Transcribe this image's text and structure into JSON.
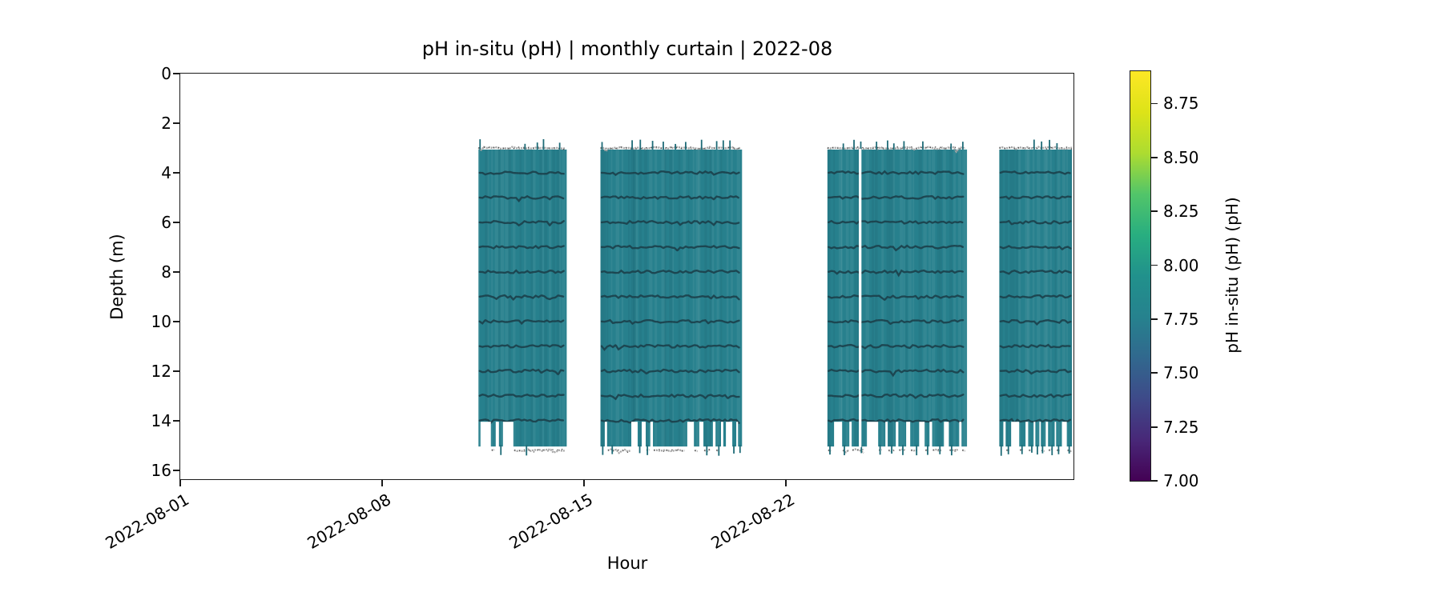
{
  "chart_data": {
    "type": "heatmap",
    "variant": "time-depth curtain plot",
    "title": "pH in-situ (pH) | monthly curtain | 2022-08",
    "xlabel": "Hour",
    "ylabel": "Depth (m)",
    "x_ticks": [
      {
        "label": "2022-08-01",
        "day": 1
      },
      {
        "label": "2022-08-08",
        "day": 8
      },
      {
        "label": "2022-08-15",
        "day": 15
      },
      {
        "label": "2022-08-22",
        "day": 22
      }
    ],
    "x_range_days": [
      1,
      32
    ],
    "y_ticks": [
      0,
      2,
      4,
      6,
      8,
      10,
      12,
      14,
      16
    ],
    "y_range_m": [
      0,
      16.4
    ],
    "grid": false,
    "value_ph_approx": 8.0,
    "depth_coverage_m": [
      3.0,
      15.0
    ],
    "profile_line_depths_m": [
      4,
      5,
      6,
      7,
      8,
      9,
      10,
      11,
      12,
      13,
      14
    ],
    "boundary_line_depths_m": [
      3.0,
      15.2
    ],
    "coverage_blocks_days": [
      {
        "start": 11.34,
        "end": 14.4,
        "interruption_days": [],
        "bottom_gaps_days": [
          [
            11.41,
            11.77
          ],
          [
            11.94,
            12.05
          ],
          [
            12.19,
            12.55
          ]
        ]
      },
      {
        "start": 15.57,
        "end": 20.48,
        "interruption_days": [],
        "bottom_gaps_days": [
          [
            15.72,
            15.8
          ],
          [
            16.64,
            16.86
          ],
          [
            17.0,
            17.14
          ],
          [
            17.3,
            17.39
          ],
          [
            18.58,
            18.81
          ],
          [
            19.0,
            19.14
          ],
          [
            19.47,
            19.56
          ],
          [
            19.75,
            19.83
          ],
          [
            19.92,
            20.14
          ],
          [
            20.28,
            20.34
          ]
        ]
      },
      {
        "start": 23.44,
        "end": 28.28,
        "interruption_days": [
          [
            24.53,
            24.62
          ]
        ],
        "bottom_gaps_days": [
          [
            23.67,
            23.95
          ],
          [
            24.2,
            24.28
          ],
          [
            24.81,
            25.2
          ],
          [
            25.45,
            25.53
          ],
          [
            25.81,
            25.9
          ],
          [
            26.17,
            26.31
          ],
          [
            26.62,
            26.81
          ],
          [
            26.98,
            27.07
          ],
          [
            27.48,
            27.65
          ],
          [
            28.01,
            28.09
          ]
        ]
      },
      {
        "start": 29.4,
        "end": 32.0,
        "interruption_days": [],
        "bottom_gaps_days": [
          [
            29.54,
            29.62
          ],
          [
            29.81,
            30.09
          ],
          [
            30.31,
            30.4
          ],
          [
            30.59,
            30.65
          ],
          [
            30.79,
            30.84
          ],
          [
            31.01,
            31.09
          ],
          [
            31.32,
            31.37
          ],
          [
            31.57,
            31.74
          ]
        ]
      }
    ],
    "colorbar": {
      "label": "pH in-situ (pH) (pH)",
      "colormap": "viridis",
      "vmin": 7.0,
      "vmax": 8.9,
      "ticks": [
        {
          "label": "7.00",
          "value": 7.0
        },
        {
          "label": "7.25",
          "value": 7.25
        },
        {
          "label": "7.50",
          "value": 7.5
        },
        {
          "label": "7.75",
          "value": 7.75
        },
        {
          "label": "8.00",
          "value": 8.0
        },
        {
          "label": "8.25",
          "value": 8.25
        },
        {
          "label": "8.50",
          "value": 8.5
        },
        {
          "label": "8.75",
          "value": 8.75
        }
      ]
    },
    "colors": {
      "fill": "#27808d",
      "fill_stripe_dark": "rgba(10,40,50,0.07)",
      "fill_stripe_light": "rgba(255,255,255,0.06)",
      "profile_line": "#1b414c",
      "boundary_line": "#a5a5a5",
      "boundary_fleck": "#4a4a4a",
      "spike": "#1e6b77",
      "axis": "#1a1a1a",
      "background": "#ffffff"
    },
    "colormap_stops": [
      {
        "pos": 0.0,
        "color": "#440154"
      },
      {
        "pos": 0.1,
        "color": "#482878"
      },
      {
        "pos": 0.2,
        "color": "#3e4a89"
      },
      {
        "pos": 0.3,
        "color": "#31688e"
      },
      {
        "pos": 0.4,
        "color": "#26828e"
      },
      {
        "pos": 0.5,
        "color": "#21918c"
      },
      {
        "pos": 0.6,
        "color": "#28ae80"
      },
      {
        "pos": 0.7,
        "color": "#52c569"
      },
      {
        "pos": 0.8,
        "color": "#addc30"
      },
      {
        "pos": 0.9,
        "color": "#dde318"
      },
      {
        "pos": 1.0,
        "color": "#fde725"
      }
    ]
  }
}
